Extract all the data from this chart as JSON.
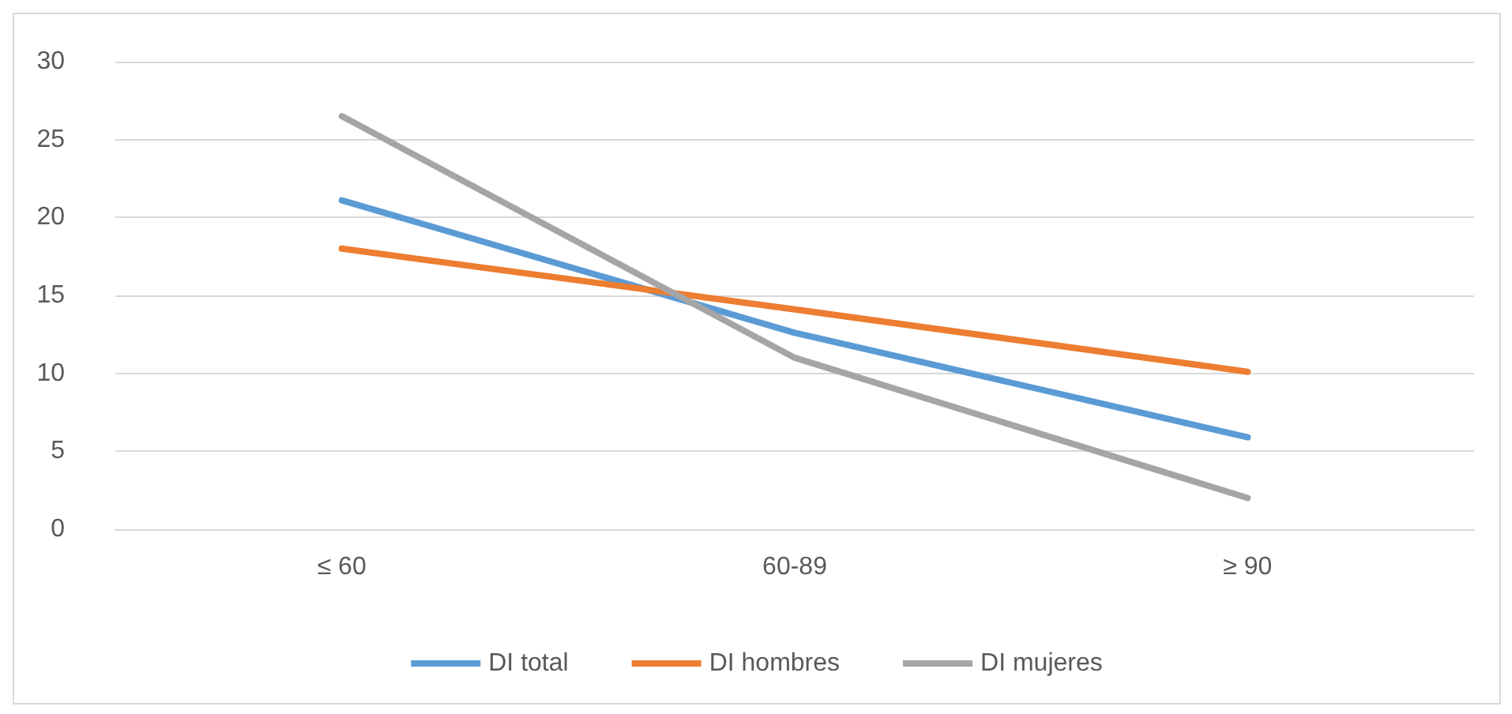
{
  "chart_data": {
    "type": "line",
    "categories": [
      "≤ 60",
      "60-89",
      "≥ 90"
    ],
    "series": [
      {
        "name": "DI total",
        "color": "#5b9bd5",
        "values": [
          21.1,
          12.6,
          5.9
        ]
      },
      {
        "name": "DI hombres",
        "color": "#ed7d31",
        "values": [
          18.0,
          14.1,
          10.1
        ]
      },
      {
        "name": "DI mujeres",
        "color": "#a5a5a5",
        "values": [
          26.5,
          11.0,
          2.0
        ]
      }
    ],
    "ylim": [
      0,
      30
    ],
    "yticks": [
      0,
      5,
      10,
      15,
      20,
      25,
      30
    ],
    "grid": "y",
    "legend": "bottom",
    "marker": "none",
    "line_style": "solid"
  }
}
